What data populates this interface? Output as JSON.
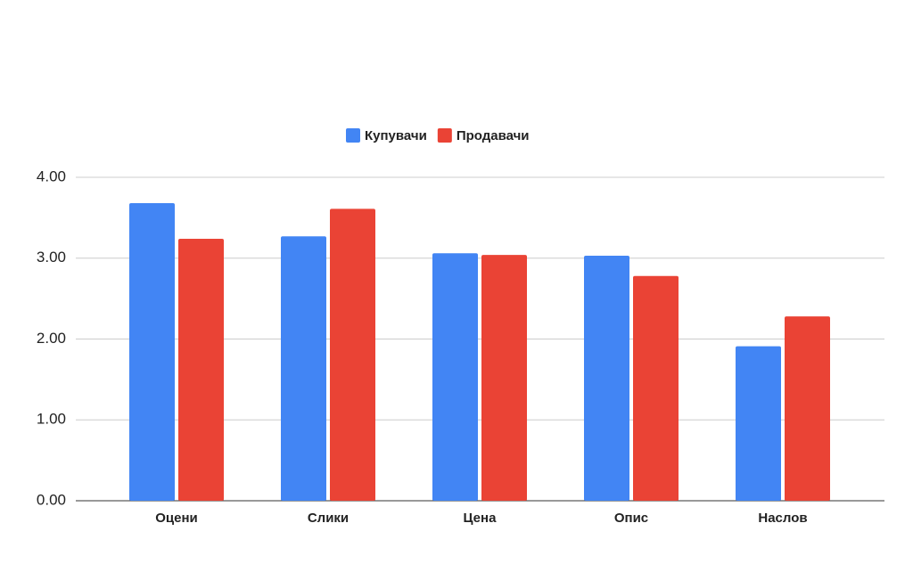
{
  "chart_data": {
    "type": "bar",
    "categories": [
      "Оцени",
      "Слики",
      "Цена",
      "Опис",
      "Наслов"
    ],
    "series": [
      {
        "name": "Купувачи",
        "color": "#4285f4",
        "values": [
          3.68,
          3.27,
          3.06,
          3.03,
          1.91
        ]
      },
      {
        "name": "Продавачи",
        "color": "#ea4335",
        "values": [
          3.24,
          3.61,
          3.04,
          2.78,
          2.28
        ]
      }
    ],
    "ylim": [
      0,
      4
    ],
    "yticks": [
      {
        "value": 0,
        "label": "0.00"
      },
      {
        "value": 1,
        "label": "1.00"
      },
      {
        "value": 2,
        "label": "2.00"
      },
      {
        "value": 3,
        "label": "3.00"
      },
      {
        "value": 4,
        "label": "4.00"
      }
    ],
    "grid": true,
    "legend": "top"
  }
}
